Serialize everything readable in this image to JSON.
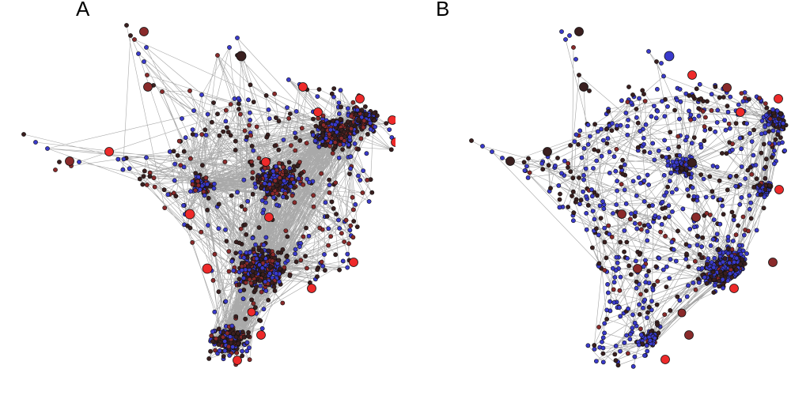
{
  "panels": [
    {
      "label": "A"
    },
    {
      "label": "B"
    }
  ],
  "colors": {
    "edge": "#9a9a9a",
    "node_dark": "#3a1f1f",
    "node_red": "#ee2a2a",
    "node_darkred": "#8a2a2a",
    "node_blue": "#3a3acc",
    "node_stroke": "#111111"
  }
}
